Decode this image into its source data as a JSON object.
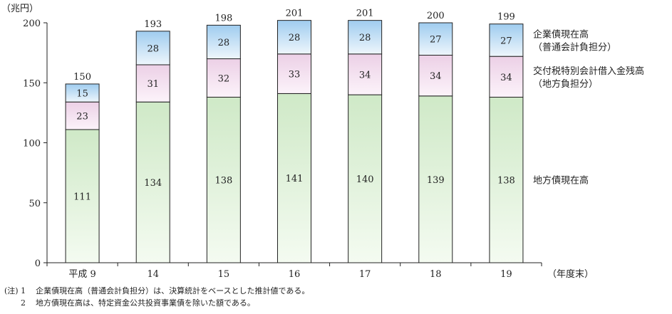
{
  "chart_data": {
    "type": "bar",
    "stacked": true,
    "ylabel": "（兆円）",
    "xlabel": "（年度末）",
    "ylim": [
      0,
      200
    ],
    "yticks": [
      "0",
      "50",
      "100",
      "150",
      "200"
    ],
    "categories": [
      "平成 9",
      "14",
      "15",
      "16",
      "17",
      "18",
      "19"
    ],
    "series": [
      {
        "name": "地方債現在高",
        "values": [
          111,
          134,
          138,
          141,
          140,
          139,
          138
        ],
        "color_top": "#cfe9c7",
        "color_bottom": "#f4fbf1"
      },
      {
        "name": "交付税特別会計借入金残高（地方負担分）",
        "values": [
          23,
          31,
          32,
          33,
          34,
          34,
          34
        ],
        "color_top": "#ecd0e6",
        "color_bottom": "#fcf3fa"
      },
      {
        "name": "企業債現在高（普通会計負担分）",
        "values": [
          15,
          28,
          28,
          28,
          28,
          27,
          27
        ],
        "color_top": "#9fccef",
        "color_bottom": "#eef6fc"
      }
    ],
    "totals": [
      150,
      193,
      198,
      201,
      201,
      200,
      199
    ],
    "legend": [
      {
        "lines": [
          "企業債現在高",
          "（普通会計負担分）"
        ]
      },
      {
        "lines": [
          "交付税特別会計借入金残高",
          "（地方負担分）"
        ]
      },
      {
        "lines": [
          "地方債現在高"
        ]
      }
    ],
    "grid": false,
    "legend_placement": "right"
  },
  "notes": [
    {
      "marker": "(注) 1",
      "text": "企業債現在高（普通会計負担分）は、決算統計をベースとした推計値である。"
    },
    {
      "marker": "2",
      "text": "地方債現在高は、特定資金公共投資事業債を除いた額である。"
    }
  ]
}
